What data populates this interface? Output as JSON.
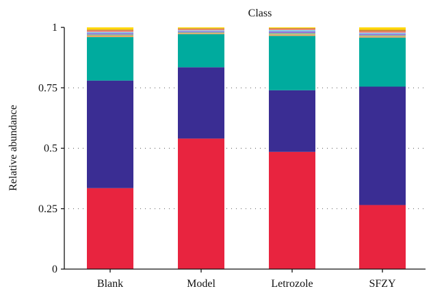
{
  "chart_data": {
    "type": "bar",
    "stacked": true,
    "title": "Class",
    "ylabel": "Relative abundance",
    "xlabel": "",
    "ylim": [
      0,
      1
    ],
    "yticks": [
      0,
      0.25,
      0.5,
      0.75,
      1
    ],
    "ytick_labels": [
      "0",
      "0.25",
      "0.5",
      "0.75",
      "1"
    ],
    "grid": "horizontal dotted",
    "categories": [
      "Blank",
      "Model",
      "Letrozole",
      "SFZY"
    ],
    "series": [
      {
        "color": "#E8243F",
        "values": [
          0.335,
          0.54,
          0.485,
          0.265
        ]
      },
      {
        "color": "#3A2D93",
        "values": [
          0.445,
          0.295,
          0.255,
          0.49
        ]
      },
      {
        "color": "#00AB9E",
        "values": [
          0.18,
          0.137,
          0.225,
          0.203
        ]
      },
      {
        "color": "#F4A460",
        "values": [
          0.006,
          0.004,
          0.006,
          0.005
        ]
      },
      {
        "color": "#8FBC8F",
        "values": [
          0.005,
          0.004,
          0.006,
          0.005
        ]
      },
      {
        "color": "#9370DB",
        "values": [
          0.005,
          0.004,
          0.006,
          0.005
        ]
      },
      {
        "color": "#87CEEB",
        "values": [
          0.005,
          0.004,
          0.006,
          0.005
        ]
      },
      {
        "color": "#F08080",
        "values": [
          0.005,
          0.004,
          0.004,
          0.005
        ]
      },
      {
        "color": "#CD853F",
        "values": [
          0.005,
          0.004,
          0.004,
          0.007
        ]
      },
      {
        "color": "#FFD700",
        "values": [
          0.009,
          0.004,
          0.003,
          0.01
        ]
      }
    ]
  }
}
